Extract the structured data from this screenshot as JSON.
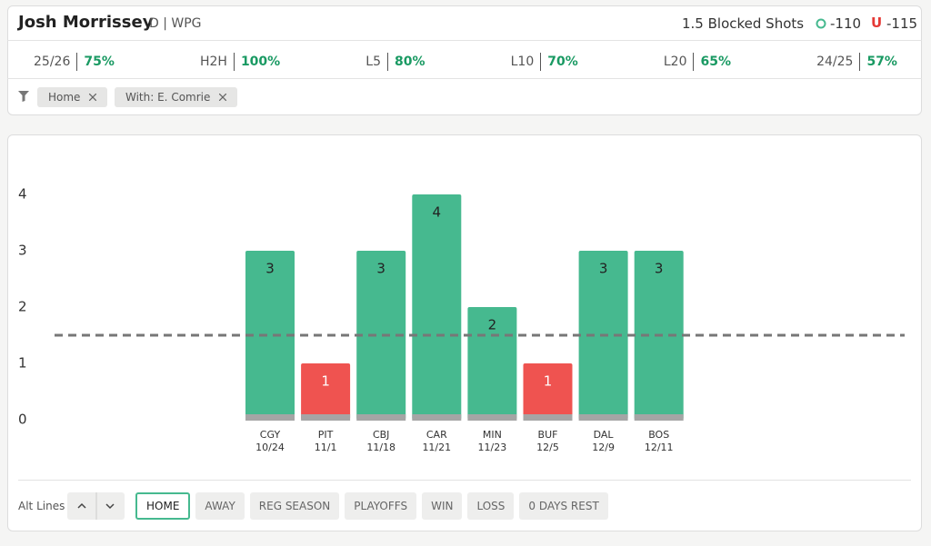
{
  "header": {
    "player": "Josh Morrissey",
    "position": "D | WPG",
    "prop": "1.5 Blocked Shots",
    "over": "-110",
    "under_mark": "U",
    "under": "-115"
  },
  "stats": [
    {
      "label": "25/26",
      "value": "75%"
    },
    {
      "label": "H2H",
      "value": "100%"
    },
    {
      "label": "L5",
      "value": "80%"
    },
    {
      "label": "L10",
      "value": "70%"
    },
    {
      "label": "L20",
      "value": "65%"
    },
    {
      "label": "24/25",
      "value": "57%"
    }
  ],
  "filters": [
    "Home",
    "With: E. Comrie"
  ],
  "chart_data": {
    "type": "bar",
    "categories": [
      "CGY",
      "PIT",
      "CBJ",
      "CAR",
      "MIN",
      "BUF",
      "DAL",
      "BOS"
    ],
    "dates": [
      "10/24",
      "11/1",
      "11/18",
      "11/21",
      "11/23",
      "12/5",
      "12/9",
      "12/11"
    ],
    "values": [
      3,
      1,
      3,
      4,
      2,
      1,
      3,
      3
    ],
    "line": 1.5,
    "ylim": [
      0,
      4
    ],
    "yticks": [
      0,
      1,
      2,
      3,
      4
    ],
    "over_color": "#46b98f",
    "under_color": "#ef5350"
  },
  "footer": {
    "alt_lines": "Alt Lines",
    "buttons": [
      "HOME",
      "AWAY",
      "REG SEASON",
      "PLAYOFFS",
      "WIN",
      "LOSS",
      "0 DAYS REST"
    ],
    "active": 0
  }
}
